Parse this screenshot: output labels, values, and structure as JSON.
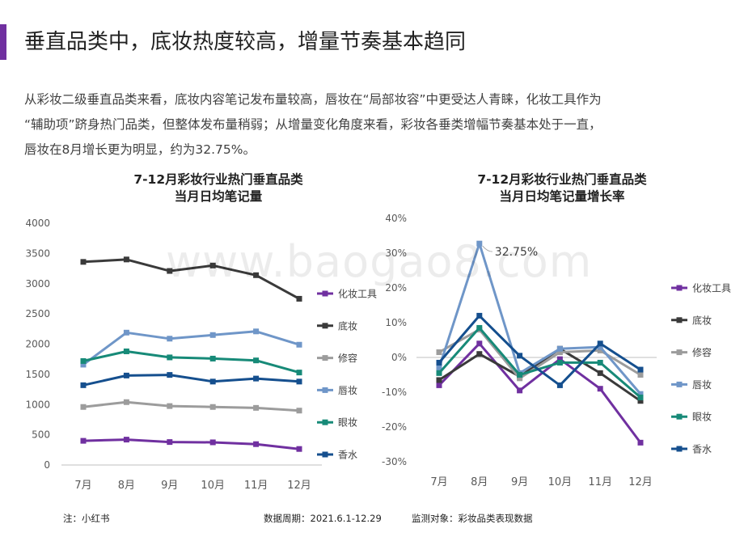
{
  "page": {
    "title": "垂直品类中，底妆热度较高，增量节奏基本趋同",
    "paragraph_lines": [
      "从彩妆二级垂直品类来看，底妆内容笔记发布量较高，唇妆在“局部妆容”中更受达人青睐，化妆工具作为",
      "“辅助项”跻身热门品类，但整体发布量稍弱；从增量变化角度来看，彩妆各垂类增幅节奏基本处于一直，",
      "唇妆在8月增长更为明显，约为32.75%。"
    ],
    "watermark": "www.baogao8.com"
  },
  "footer": {
    "note": "注：小红书",
    "period": "数据周期：2021.6.1-12.29",
    "scope": "监测对象：彩妆品类表现数据"
  },
  "chart_data": [
    {
      "type": "line",
      "title": [
        "7-12月彩妆行业热门垂直品类",
        "当月日均笔记量"
      ],
      "categories": [
        "7月",
        "8月",
        "9月",
        "10月",
        "11月",
        "12月"
      ],
      "ylim": [
        0,
        4000
      ],
      "yticks": [
        "0",
        "500",
        "1000",
        "1500",
        "2000",
        "2500",
        "3000",
        "3500",
        "4000"
      ],
      "grid": false,
      "legend_position": "right",
      "series": [
        {
          "name": "化妆工具",
          "color": "#7030a0",
          "values": [
            400,
            420,
            380,
            375,
            345,
            265
          ]
        },
        {
          "name": "底妆",
          "color": "#3a3a3a",
          "values": [
            3360,
            3400,
            3210,
            3300,
            3140,
            2750
          ]
        },
        {
          "name": "修容",
          "color": "#9c9c9c",
          "values": [
            960,
            1040,
            975,
            960,
            945,
            900
          ]
        },
        {
          "name": "唇妆",
          "color": "#6f96c8",
          "values": [
            1660,
            2190,
            2090,
            2150,
            2210,
            1990
          ]
        },
        {
          "name": "眼妆",
          "color": "#178a78",
          "values": [
            1720,
            1880,
            1780,
            1760,
            1730,
            1530
          ]
        },
        {
          "name": "香水",
          "color": "#154f8e",
          "values": [
            1320,
            1480,
            1490,
            1380,
            1430,
            1380
          ]
        }
      ]
    },
    {
      "type": "line",
      "title": [
        "7-12月彩妆行业热门垂直品类",
        "当月日均笔记量增长率"
      ],
      "categories": [
        "7月",
        "8月",
        "9月",
        "10月",
        "11月",
        "12月"
      ],
      "ylim": [
        -30,
        40
      ],
      "yticks": [
        "-30%",
        "-20%",
        "-10%",
        "0%",
        "10%",
        "20%",
        "30%",
        "40%"
      ],
      "grid": false,
      "legend_position": "right",
      "annotation": {
        "text": "32.75%",
        "series": "唇妆",
        "index": 1
      },
      "series": [
        {
          "name": "化妆工具",
          "color": "#7030a0",
          "values": [
            -8,
            4,
            -9.5,
            -0.5,
            -9,
            -24.5
          ]
        },
        {
          "name": "底妆",
          "color": "#3a3a3a",
          "values": [
            -6.5,
            1,
            -5.5,
            2.5,
            -4.5,
            -12.5
          ]
        },
        {
          "name": "修容",
          "color": "#9c9c9c",
          "values": [
            1.5,
            8,
            -6,
            1.5,
            2,
            -5
          ]
        },
        {
          "name": "唇妆",
          "color": "#6f96c8",
          "values": [
            -3,
            32.75,
            -4.5,
            2.5,
            3,
            -10.5
          ]
        },
        {
          "name": "眼妆",
          "color": "#178a78",
          "values": [
            -4.5,
            8.5,
            -5,
            -1.5,
            -1.5,
            -11.5
          ]
        },
        {
          "name": "香水",
          "color": "#154f8e",
          "values": [
            -1.5,
            12,
            0.5,
            -8,
            4,
            -3.5
          ]
        }
      ]
    }
  ]
}
